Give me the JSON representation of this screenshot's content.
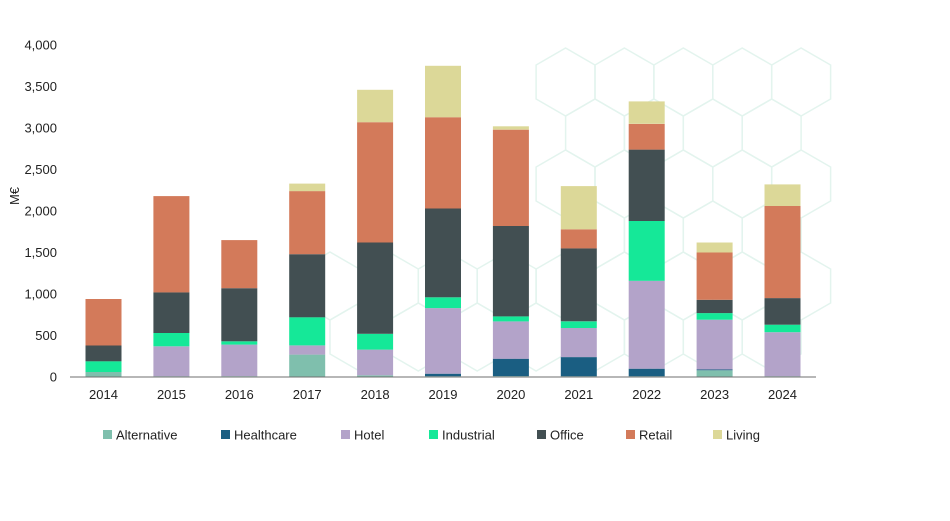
{
  "chart_data": {
    "type": "bar",
    "stacked": true,
    "title": "",
    "xlabel": "",
    "ylabel": "M€",
    "ylim": [
      0,
      4000
    ],
    "yticks": [
      0,
      500,
      1000,
      1500,
      2000,
      2500,
      3000,
      3500,
      4000
    ],
    "ytick_labels": [
      "0",
      "500",
      "1,000",
      "1,500",
      "2,000",
      "2,500",
      "3,000",
      "3,500",
      "4,000"
    ],
    "grid": false,
    "legend_position": "bottom",
    "categories": [
      "2014",
      "2015",
      "2016",
      "2017",
      "2018",
      "2019",
      "2020",
      "2021",
      "2022",
      "2023",
      "2024"
    ],
    "series": [
      {
        "name": "Alternative",
        "color": "#7fbfad",
        "values": [
          60,
          10,
          10,
          270,
          20,
          10,
          10,
          10,
          10,
          80,
          10
        ]
      },
      {
        "name": "Healthcare",
        "color": "#1a5e82",
        "values": [
          0,
          0,
          0,
          0,
          0,
          30,
          210,
          230,
          90,
          10,
          0
        ]
      },
      {
        "name": "Hotel",
        "color": "#b3a3c9",
        "values": [
          0,
          360,
          380,
          110,
          310,
          790,
          450,
          350,
          1060,
          600,
          530
        ]
      },
      {
        "name": "Industrial",
        "color": "#15e898",
        "values": [
          130,
          160,
          40,
          340,
          190,
          130,
          60,
          80,
          720,
          80,
          90
        ]
      },
      {
        "name": "Office",
        "color": "#424f52",
        "values": [
          190,
          490,
          640,
          760,
          1100,
          1070,
          1090,
          880,
          860,
          160,
          320
        ]
      },
      {
        "name": "Retail",
        "color": "#d37a5a",
        "values": [
          560,
          1160,
          580,
          760,
          1450,
          1100,
          1160,
          230,
          310,
          570,
          1110
        ]
      },
      {
        "name": "Living",
        "color": "#dcd898",
        "values": [
          0,
          0,
          0,
          90,
          390,
          620,
          40,
          520,
          270,
          120,
          260
        ]
      }
    ]
  }
}
